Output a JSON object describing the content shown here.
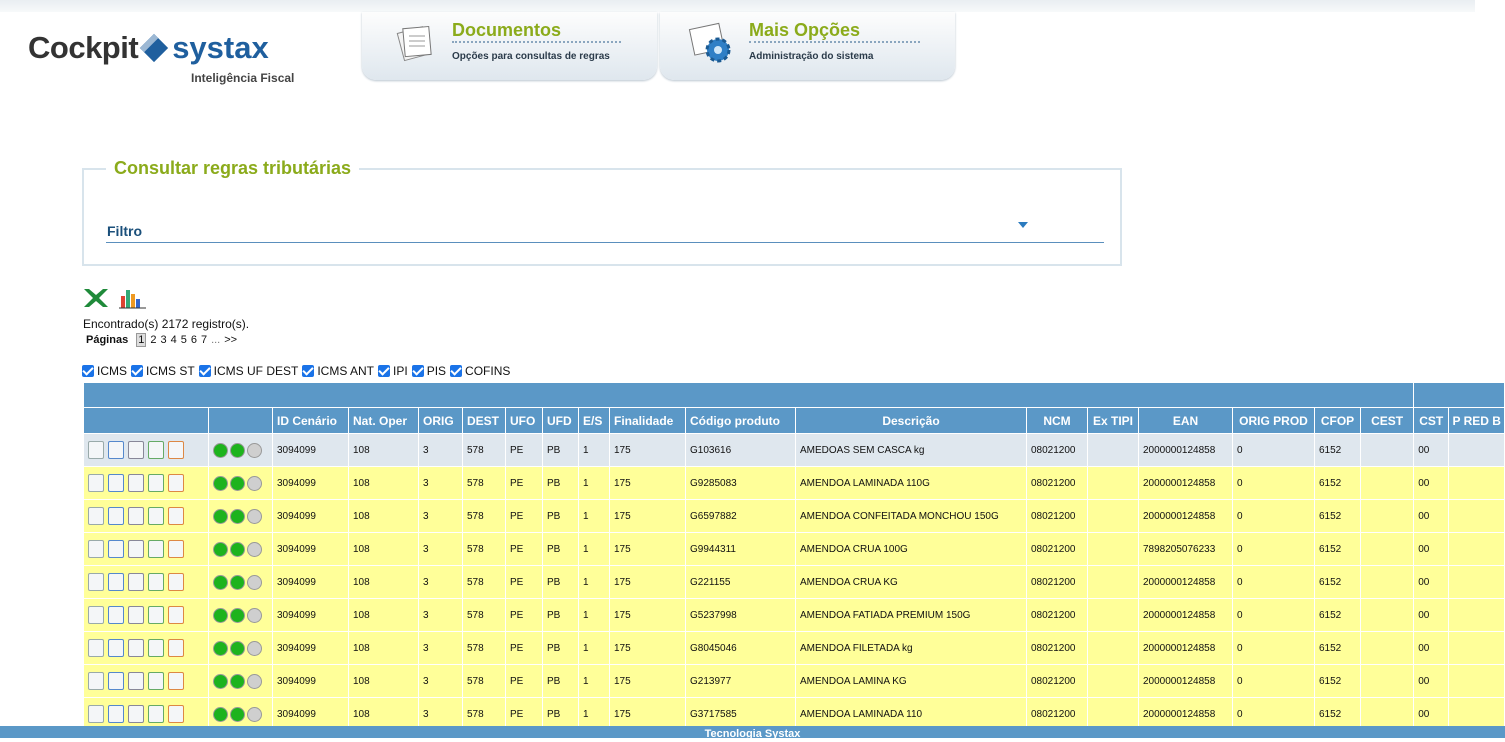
{
  "header": {
    "logo_main": "Cockpit",
    "logo_brand": "systax",
    "logo_tagline": "Inteligência Fiscal"
  },
  "nav": [
    {
      "title": "Documentos",
      "subtitle": "Opções para consultas de regras"
    },
    {
      "title": "Mais Opções",
      "subtitle": "Administração do sistema"
    }
  ],
  "section": {
    "title": "Consultar regras tributárias",
    "filter_label": "Filtro"
  },
  "results": {
    "summary": "Encontrado(s) 2172 registro(s).",
    "pages_label": "Páginas",
    "pages": [
      "1",
      "2",
      "3",
      "4",
      "5",
      "6",
      "7"
    ],
    "ellipsis": "...",
    "next": ">>"
  },
  "taxes": [
    "ICMS",
    "ICMS ST",
    "ICMS UF DEST",
    "ICMS ANT",
    "IPI",
    "PIS",
    "COFINS"
  ],
  "table": {
    "columns": [
      "ID Cenário",
      "Nat. Oper",
      "ORIG",
      "DEST",
      "UFO",
      "UFD",
      "E/S",
      "Finalidade",
      "Código produto",
      "Descrição",
      "NCM",
      "Ex TIPI",
      "EAN",
      "ORIG PROD",
      "CFOP",
      "CEST",
      "CST",
      "P RED B"
    ],
    "rows": [
      [
        "3094099",
        "108",
        "3",
        "578",
        "PE",
        "PB",
        "1",
        "175",
        "G103616",
        "AMEDOAS SEM CASCA kg",
        "08021200",
        null,
        "2000000124858",
        "0",
        "6152",
        null,
        "00",
        null
      ],
      [
        "3094099",
        "108",
        "3",
        "578",
        "PE",
        "PB",
        "1",
        "175",
        "G9285083",
        "AMENDOA LAMINADA 110G",
        "08021200",
        null,
        "2000000124858",
        "0",
        "6152",
        null,
        "00",
        null
      ],
      [
        "3094099",
        "108",
        "3",
        "578",
        "PE",
        "PB",
        "1",
        "175",
        "G6597882",
        "AMENDOA CONFEITADA MONCHOU 150G",
        "08021200",
        null,
        "2000000124858",
        "0",
        "6152",
        null,
        "00",
        null
      ],
      [
        "3094099",
        "108",
        "3",
        "578",
        "PE",
        "PB",
        "1",
        "175",
        "G9944311",
        "AMENDOA CRUA 100G",
        "08021200",
        null,
        "7898205076233",
        "0",
        "6152",
        null,
        "00",
        null
      ],
      [
        "3094099",
        "108",
        "3",
        "578",
        "PE",
        "PB",
        "1",
        "175",
        "G221155",
        "AMENDOA CRUA KG",
        "08021200",
        null,
        "2000000124858",
        "0",
        "6152",
        null,
        "00",
        null
      ],
      [
        "3094099",
        "108",
        "3",
        "578",
        "PE",
        "PB",
        "1",
        "175",
        "G5237998",
        "AMENDOA FATIADA PREMIUM 150G",
        "08021200",
        null,
        "2000000124858",
        "0",
        "6152",
        null,
        "00",
        null
      ],
      [
        "3094099",
        "108",
        "3",
        "578",
        "PE",
        "PB",
        "1",
        "175",
        "G8045046",
        "AMENDOA FILETADA kg",
        "08021200",
        null,
        "2000000124858",
        "0",
        "6152",
        null,
        "00",
        null
      ],
      [
        "3094099",
        "108",
        "3",
        "578",
        "PE",
        "PB",
        "1",
        "175",
        "G213977",
        "AMENDOA LAMINA KG",
        "08021200",
        null,
        "2000000124858",
        "0",
        "6152",
        null,
        "00",
        null
      ],
      [
        "3094099",
        "108",
        "3",
        "578",
        "PE",
        "PB",
        "1",
        "175",
        "G3717585",
        "AMENDOA LAMINADA 110",
        "08021200",
        null,
        "2000000124858",
        "0",
        "6152",
        null,
        "00",
        null
      ]
    ]
  },
  "footer": {
    "text": "Tecnologia Systax"
  }
}
